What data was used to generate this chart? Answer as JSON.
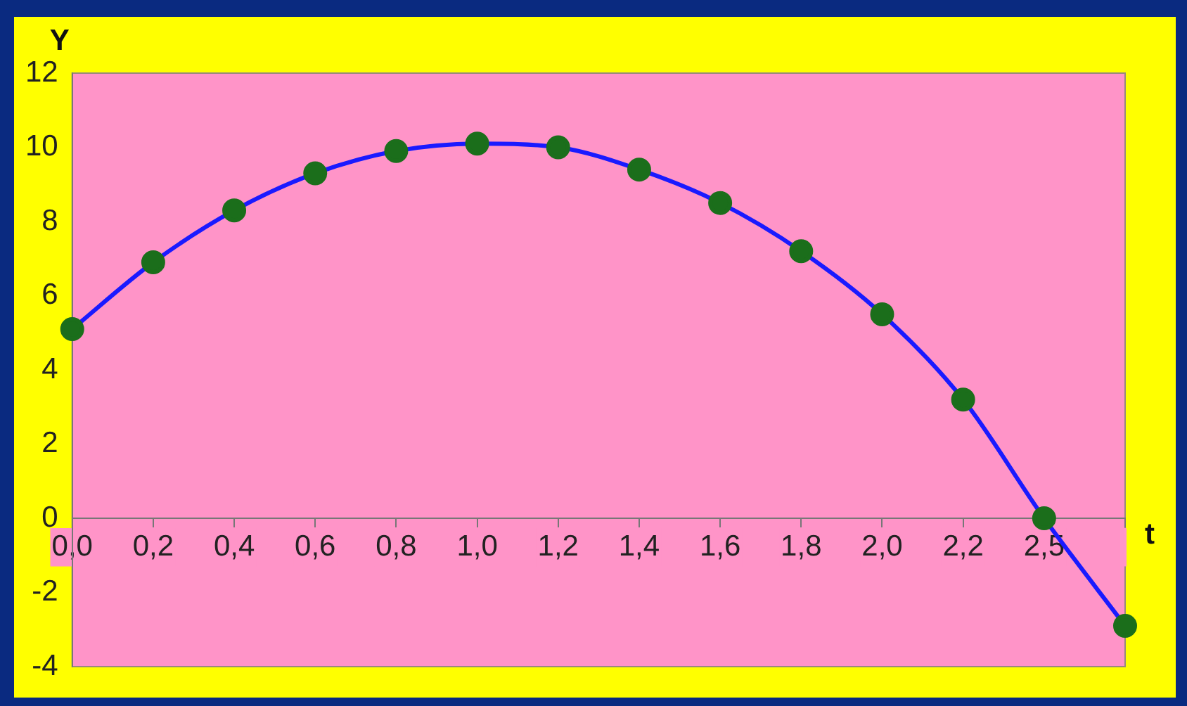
{
  "chart_data": {
    "type": "line",
    "xlabel": "t",
    "ylabel": "Y",
    "categories": [
      "0,0",
      "0,2",
      "0,4",
      "0,6",
      "0,8",
      "1,0",
      "1,2",
      "1,4",
      "1,6",
      "1,8",
      "2,0",
      "2,2",
      "2,5",
      null
    ],
    "values": [
      5.1,
      6.9,
      8.3,
      9.3,
      9.9,
      10.1,
      10.0,
      9.4,
      8.5,
      7.2,
      5.5,
      3.2,
      0,
      -2.9
    ],
    "color": "#1a1aff",
    "marker": "circle",
    "line_style": "solid",
    "ylim": [
      -4,
      12
    ],
    "yticks": [
      -4,
      -2,
      0,
      2,
      4,
      6,
      8,
      10,
      12
    ],
    "legend": false
  }
}
